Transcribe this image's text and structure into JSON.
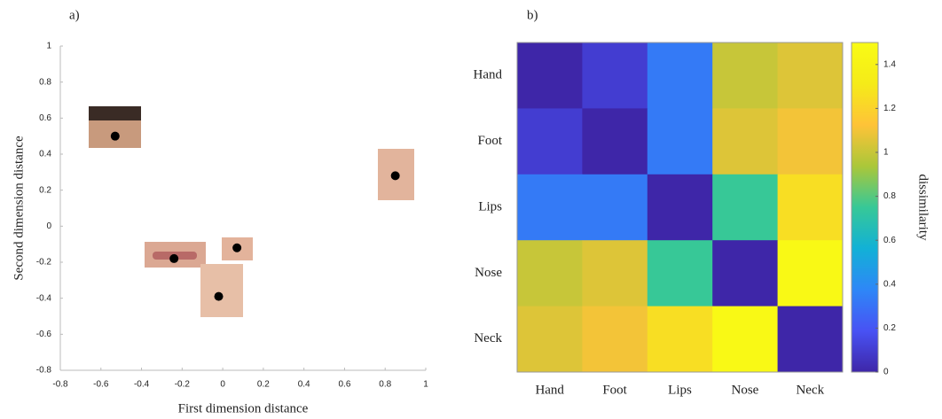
{
  "chart_data": [
    {
      "type": "scatter",
      "panel_label": "a)",
      "x_label": "First dimension distance",
      "y_label": "Second dimension distance",
      "x": [
        -0.53,
        0.85,
        0.07,
        -0.24,
        -0.02
      ],
      "values": [
        0.5,
        0.28,
        -0.12,
        -0.18,
        -0.39
      ],
      "color": "#000000",
      "xlim": [
        -0.8,
        1
      ],
      "xticks": [
        -0.8,
        -0.6,
        -0.4,
        -0.2,
        0,
        0.2,
        0.4,
        0.6,
        0.8,
        1
      ],
      "ylim": [
        -0.8,
        1
      ],
      "yticks": [
        -0.8,
        -0.6,
        -0.4,
        -0.2,
        0,
        0.2,
        0.4,
        0.6,
        0.8,
        1
      ],
      "grid": false
    },
    {
      "type": "heatmap",
      "panel_label": "b)",
      "x_categories": [
        "Hand",
        "Foot",
        "Lips",
        "Nose",
        "Neck"
      ],
      "y_categories": [
        "Hand",
        "Foot",
        "Lips",
        "Nose",
        "Neck"
      ],
      "values": [
        [
          0,
          0.1,
          0.33,
          1.0,
          1.05
        ],
        [
          0.1,
          0,
          0.33,
          1.05,
          1.1
        ],
        [
          0.33,
          0.33,
          0,
          0.75,
          1.25
        ],
        [
          1.0,
          1.05,
          0.75,
          0,
          1.48
        ],
        [
          1.05,
          1.1,
          1.25,
          1.48,
          0
        ]
      ],
      "colormap": "parula",
      "clim": [
        0,
        1.5
      ],
      "colorbar_ticks": [
        0,
        0.2,
        0.4,
        0.6,
        0.8,
        1,
        1.2,
        1.4
      ],
      "colorbar_label": "dissimilarity"
    }
  ]
}
